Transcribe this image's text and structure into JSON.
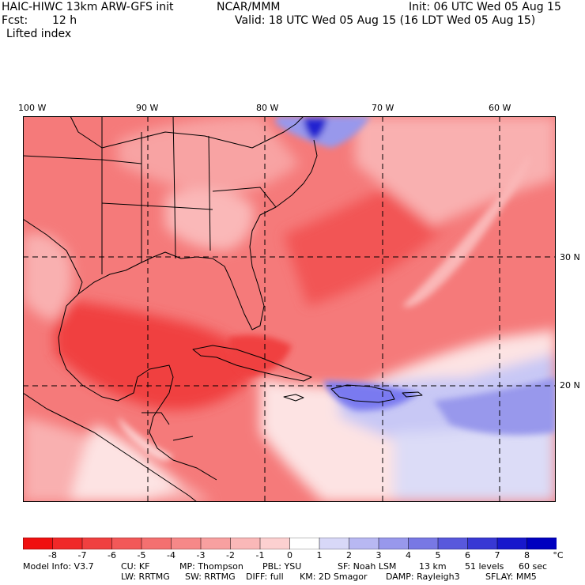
{
  "header": {
    "title_left": "HAIC-HIWC 13km ARW-GFS init",
    "org": "NCAR/MMM",
    "init": "Init: 06 UTC Wed 05 Aug 15",
    "fcst_label": "Fcst:",
    "fcst_value": "12 h",
    "valid": "Valid: 18 UTC Wed 05 Aug 15 (16 LDT Wed 05 Aug 15)",
    "field": "Lifted index"
  },
  "map": {
    "lon_labels": [
      "100 W",
      "90 W",
      "80 W",
      "70 W",
      "60 W"
    ],
    "lat_labels": [
      "30 N",
      "20 N"
    ],
    "colors": {
      "neg_strong": "#f04040",
      "neg_mid": "#f57a7a",
      "neg_light": "#f9b0b0",
      "neutral": "#fde3e3",
      "pos_light": "#c8c8f5",
      "pos_mid": "#7a7af0",
      "pos_strong": "#2020d0",
      "coast": "#000000"
    }
  },
  "colorbar": {
    "labels": [
      "-8",
      "-7",
      "-6",
      "-5",
      "-4",
      "-3",
      "-2",
      "-1",
      "0",
      "1",
      "2",
      "3",
      "4",
      "5",
      "6",
      "7",
      "8"
    ],
    "unit": "°C",
    "colors": [
      "#f01010",
      "#f02828",
      "#f04040",
      "#f25858",
      "#f47070",
      "#f68888",
      "#f8a0a0",
      "#fab8b8",
      "#fcd0d0",
      "#ffffff",
      "#d8d8f8",
      "#b8b8f2",
      "#9898ec",
      "#7878e4",
      "#5858dc",
      "#3838d4",
      "#1818cc",
      "#0000c0"
    ]
  },
  "footer": {
    "line1": [
      "Model Info: V3.7",
      "CU: KF",
      "MP: Thompson",
      "PBL: YSU",
      "SF: Noah LSM",
      "13 km",
      "51 levels",
      "60 sec"
    ],
    "line2": [
      "LW: RRTMG",
      "SW: RRTMG",
      "DIFF: full",
      "KM: 2D Smagor",
      "DAMP: Rayleigh3",
      "SFLAY: MM5"
    ]
  }
}
